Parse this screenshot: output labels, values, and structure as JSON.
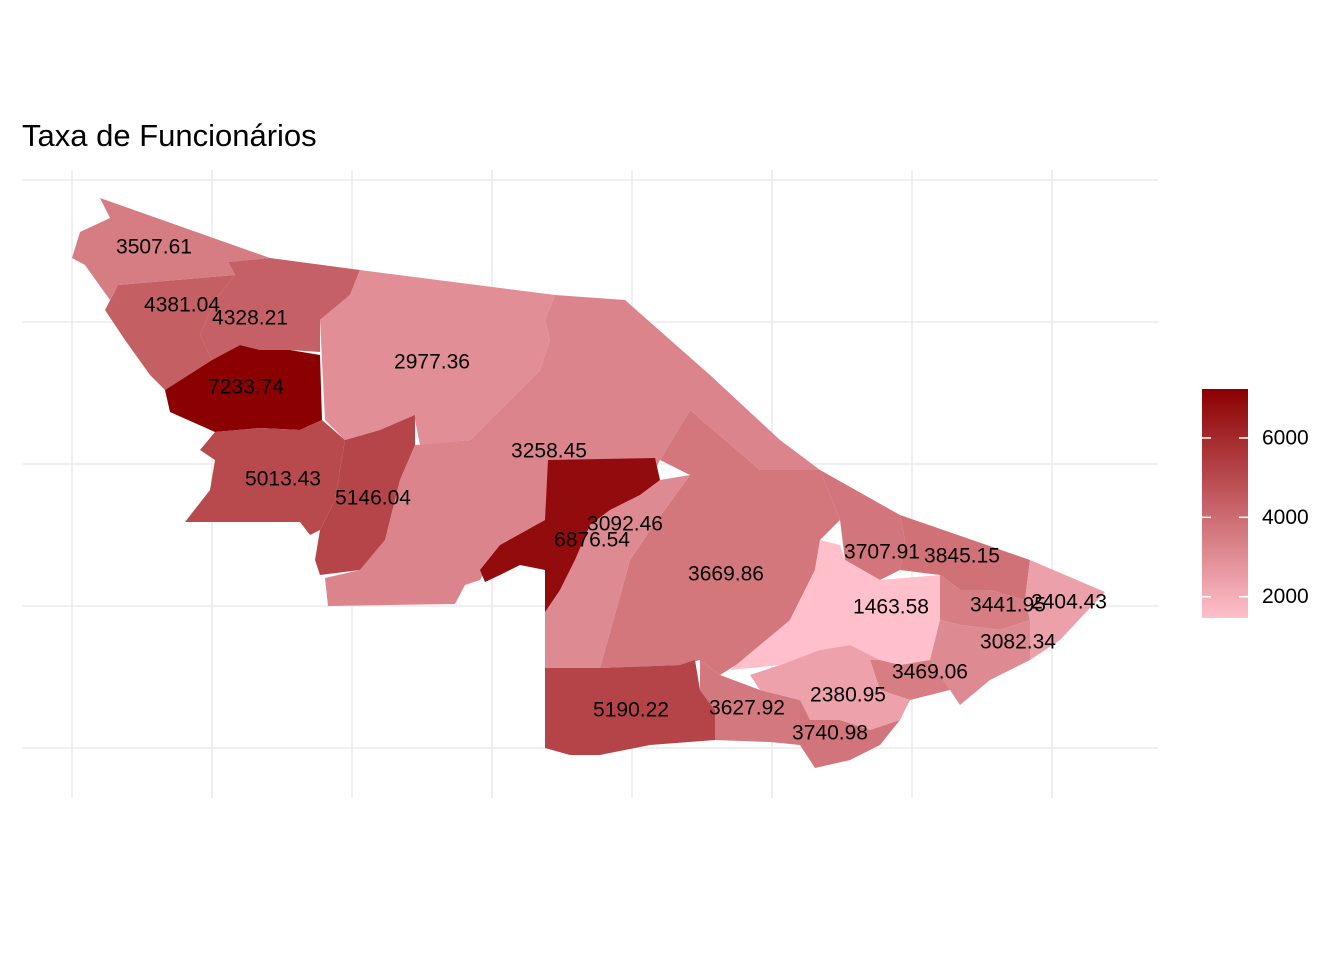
{
  "title": "Taxa de Funcionários",
  "chart_data": {
    "type": "choropleth",
    "title": "Taxa de Funcionários",
    "regions": [
      {
        "value": 3507.61
      },
      {
        "value": 4328.21
      },
      {
        "value": 4381.04
      },
      {
        "value": 7233.74
      },
      {
        "value": 2977.36
      },
      {
        "value": 5013.43
      },
      {
        "value": 5146.04
      },
      {
        "value": 3258.45
      },
      {
        "value": 6876.54
      },
      {
        "value": 3092.46
      },
      {
        "value": 3669.86
      },
      {
        "value": 5190.22
      },
      {
        "value": 3627.92
      },
      {
        "value": 1463.58
      },
      {
        "value": 3707.91
      },
      {
        "value": 3845.15
      },
      {
        "value": 3441.95
      },
      {
        "value": 2404.43
      },
      {
        "value": 3082.34
      },
      {
        "value": 3469.06
      },
      {
        "value": 2380.95
      },
      {
        "value": 3740.98
      }
    ],
    "labels": [
      "3507.61",
      "4328.21",
      "4381.04",
      "7233.74",
      "2977.36",
      "5013.43",
      "5146.04",
      "3258.45",
      "6876.54",
      "3092.46",
      "3669.86",
      "5190.22",
      "3627.92",
      "1463.58",
      "3707.91",
      "3845.15",
      "3441.95",
      "2404.43",
      "3082.34",
      "3469.06",
      "2380.95",
      "3740.98"
    ],
    "legend": {
      "position": "right",
      "ticks": [
        "2000",
        "4000",
        "6000"
      ],
      "tick_values": [
        2000,
        4000,
        6000
      ],
      "range": [
        1463.58,
        7233.74
      ],
      "low_color": "#FFC0CB",
      "high_color": "#8B0000"
    },
    "grid": true,
    "axis_labels_shown": false
  }
}
